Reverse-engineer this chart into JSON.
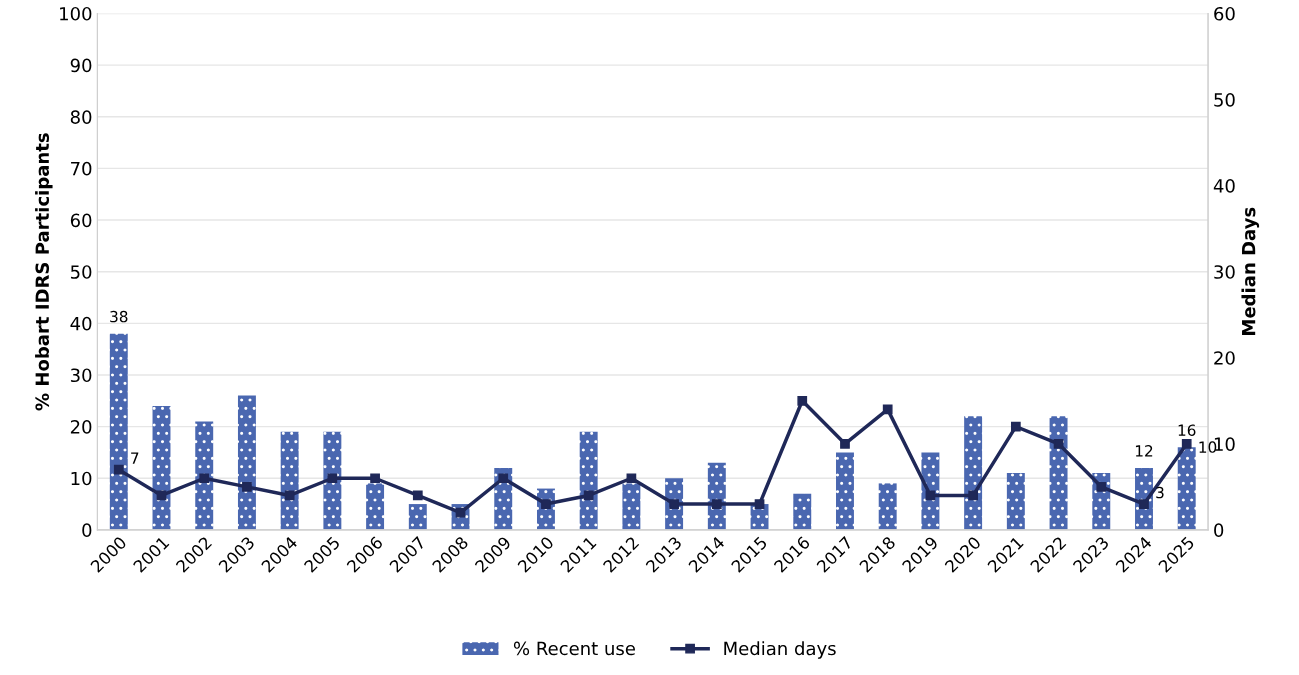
{
  "chart_data": {
    "type": "bar",
    "categories": [
      "2000",
      "2001",
      "2002",
      "2003",
      "2004",
      "2005",
      "2006",
      "2007",
      "2008",
      "2009",
      "2010",
      "2011",
      "2012",
      "2013",
      "2014",
      "2015",
      "2016",
      "2017",
      "2018",
      "2019",
      "2020",
      "2021",
      "2022",
      "2023",
      "2024",
      "2025"
    ],
    "series": [
      {
        "name": "% Recent use",
        "color": "#4a67b0",
        "values": [
          38,
          24,
          21,
          26,
          19,
          19,
          9,
          5,
          5,
          12,
          8,
          19,
          9,
          10,
          13,
          5,
          7,
          15,
          9,
          15,
          22,
          11,
          22,
          11,
          12,
          16
        ],
        "value_labels": [
          "38",
          null,
          null,
          null,
          null,
          null,
          null,
          null,
          null,
          null,
          null,
          null,
          null,
          null,
          null,
          null,
          null,
          null,
          null,
          null,
          null,
          null,
          null,
          null,
          "12",
          "16"
        ]
      },
      {
        "name": "Median days",
        "type": "line",
        "axis": "y2",
        "color": "#1f2858",
        "marker": "square",
        "values": [
          7,
          4,
          6,
          5,
          4,
          6,
          6,
          4,
          2,
          6,
          3,
          4,
          6,
          3,
          3,
          3,
          15,
          10,
          14,
          4,
          4,
          12,
          10,
          5,
          3,
          10
        ],
        "value_labels": [
          "7",
          null,
          null,
          null,
          null,
          null,
          null,
          null,
          null,
          null,
          null,
          null,
          null,
          null,
          null,
          null,
          null,
          null,
          null,
          null,
          null,
          null,
          null,
          null,
          "3",
          "10"
        ]
      }
    ],
    "ylabel": "% Hobart IDRS Participants",
    "y2label": "Median Days",
    "ylim": [
      0,
      100
    ],
    "yticks": [
      0,
      10,
      20,
      30,
      40,
      50,
      60,
      70,
      80,
      90,
      100
    ],
    "y2lim": [
      0,
      60
    ],
    "y2ticks": [
      0,
      10,
      20,
      30,
      40,
      50,
      60
    ],
    "grid": "y",
    "legend": "bottom"
  }
}
